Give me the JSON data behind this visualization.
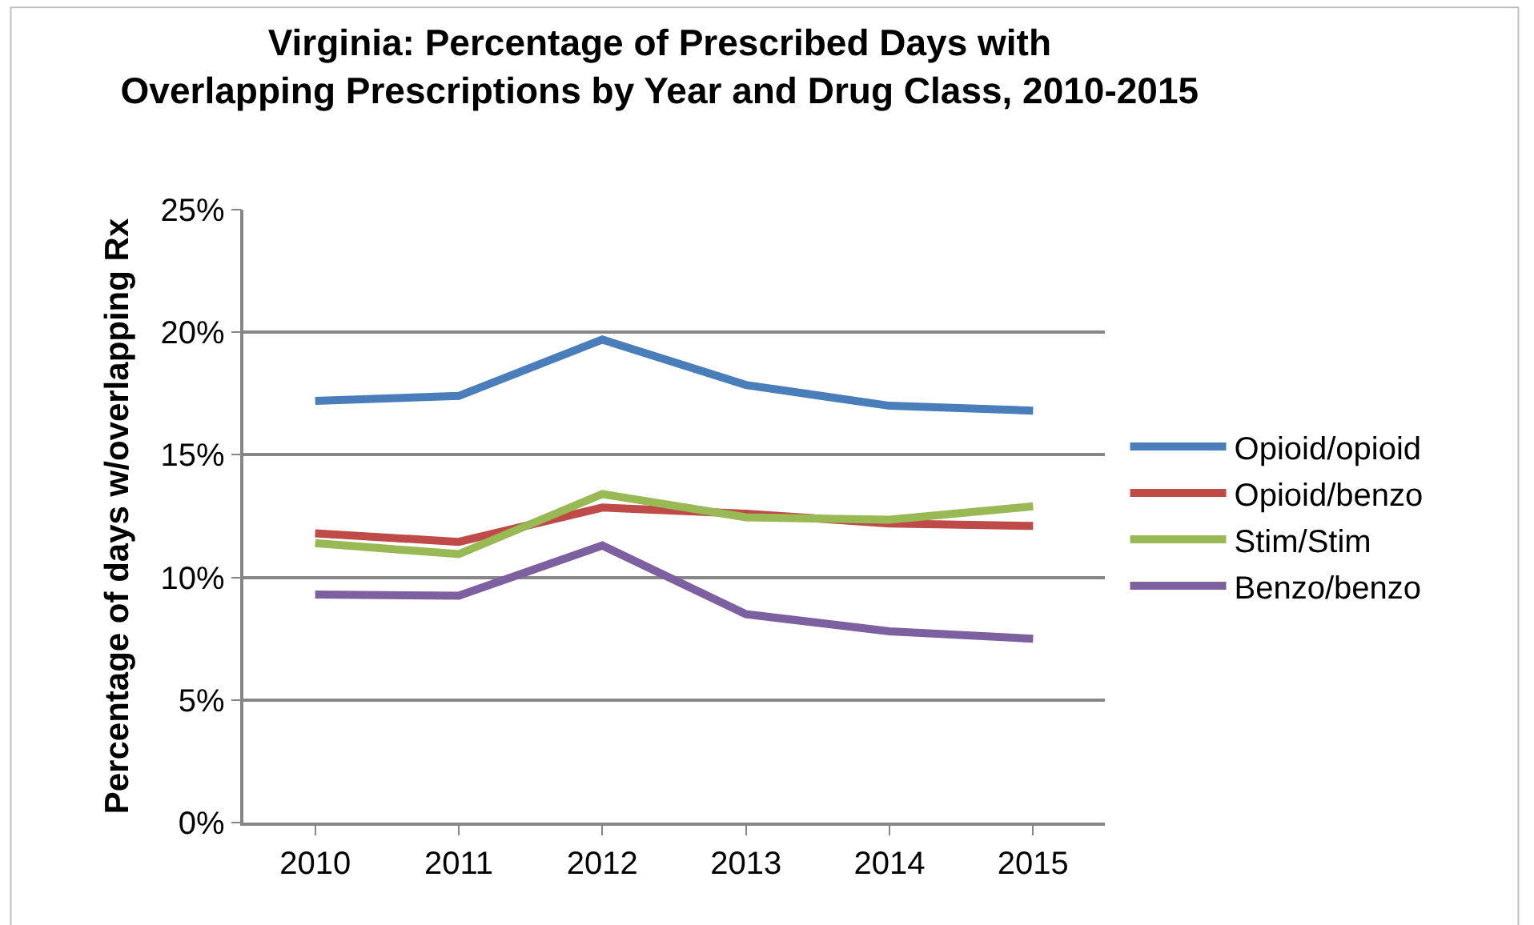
{
  "chart_data": {
    "type": "line",
    "title": "Virginia: Percentage of Prescribed Days with Overlapping Prescriptions by Year and Drug Class, 2010-2015",
    "ylabel": "Percentage of days w/overlapping Rx",
    "categories": [
      "2010",
      "2011",
      "2012",
      "2013",
      "2014",
      "2015"
    ],
    "series": [
      {
        "name": "Opioid/opioid",
        "color": "#4a7ebb",
        "values": [
          17.2,
          17.4,
          19.7,
          17.85,
          17.0,
          16.8
        ]
      },
      {
        "name": "Opioid/benzo",
        "color": "#be4b48",
        "values": [
          11.8,
          11.45,
          12.85,
          12.6,
          12.2,
          12.1
        ]
      },
      {
        "name": "Stim/Stim",
        "color": "#98b954",
        "values": [
          11.4,
          10.95,
          13.4,
          12.45,
          12.35,
          12.9
        ]
      },
      {
        "name": "Benzo/benzo",
        "color": "#7d60a0",
        "values": [
          9.3,
          9.25,
          11.3,
          8.5,
          7.8,
          7.5
        ]
      }
    ],
    "ylim": [
      0,
      25
    ],
    "yticks": [
      {
        "value": 0,
        "label": "0%"
      },
      {
        "value": 5,
        "label": "5%"
      },
      {
        "value": 10,
        "label": "10%"
      },
      {
        "value": 15,
        "label": "15%"
      },
      {
        "value": 20,
        "label": "20%"
      },
      {
        "value": 25,
        "label": "25%"
      }
    ],
    "grid": "y",
    "legend": "right",
    "marker": "none",
    "line_style": "solid"
  }
}
